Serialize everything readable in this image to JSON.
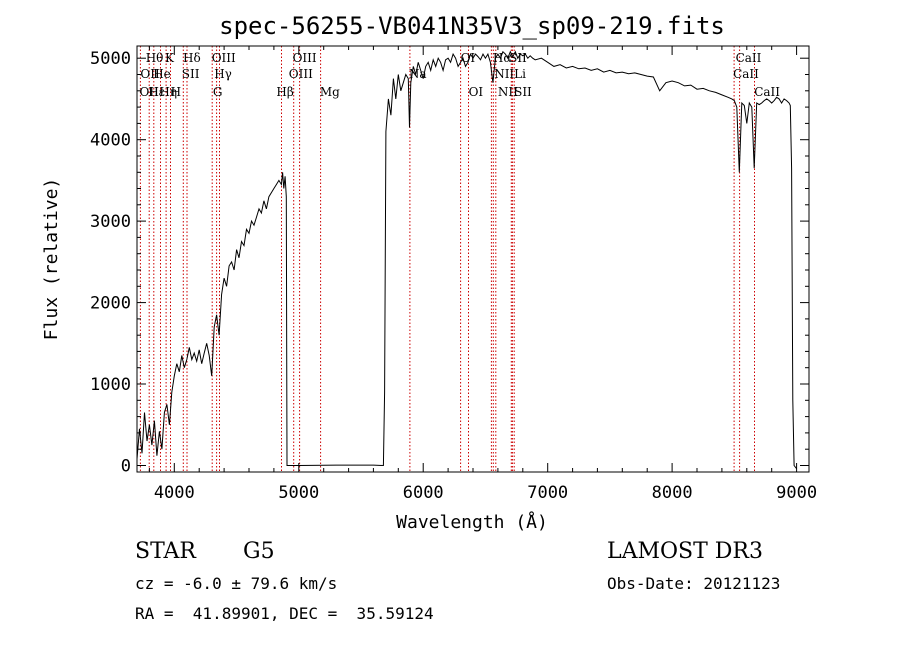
{
  "chart_data": {
    "type": "line",
    "title": "spec-56255-VB041N35V3_sp09-219.fits",
    "xlabel": "Wavelength (Å)",
    "ylabel": "Flux (relative)",
    "xlim": [
      3700,
      9100
    ],
    "ylim": [
      -80,
      5150
    ],
    "x_ticks": [
      4000,
      5000,
      6000,
      7000,
      8000,
      9000
    ],
    "y_ticks": [
      0,
      1000,
      2000,
      3000,
      4000,
      5000
    ],
    "grid": false,
    "series": [
      {
        "color": "#000000",
        "points": [
          [
            3700,
            80
          ],
          [
            3720,
            450
          ],
          [
            3740,
            150
          ],
          [
            3760,
            650
          ],
          [
            3780,
            300
          ],
          [
            3800,
            500
          ],
          [
            3820,
            250
          ],
          [
            3840,
            550
          ],
          [
            3860,
            120
          ],
          [
            3880,
            420
          ],
          [
            3900,
            200
          ],
          [
            3920,
            650
          ],
          [
            3940,
            750
          ],
          [
            3960,
            500
          ],
          [
            3980,
            900
          ],
          [
            4000,
            1100
          ],
          [
            4020,
            1250
          ],
          [
            4040,
            1150
          ],
          [
            4060,
            1350
          ],
          [
            4080,
            1200
          ],
          [
            4100,
            1300
          ],
          [
            4120,
            1450
          ],
          [
            4140,
            1300
          ],
          [
            4160,
            1380
          ],
          [
            4180,
            1280
          ],
          [
            4200,
            1420
          ],
          [
            4220,
            1250
          ],
          [
            4240,
            1380
          ],
          [
            4260,
            1500
          ],
          [
            4280,
            1350
          ],
          [
            4300,
            1100
          ],
          [
            4320,
            1700
          ],
          [
            4340,
            1850
          ],
          [
            4360,
            1600
          ],
          [
            4380,
            2100
          ],
          [
            4400,
            2300
          ],
          [
            4420,
            2200
          ],
          [
            4440,
            2450
          ],
          [
            4460,
            2500
          ],
          [
            4480,
            2400
          ],
          [
            4500,
            2650
          ],
          [
            4520,
            2550
          ],
          [
            4540,
            2750
          ],
          [
            4560,
            2700
          ],
          [
            4580,
            2900
          ],
          [
            4600,
            2850
          ],
          [
            4620,
            3000
          ],
          [
            4640,
            2950
          ],
          [
            4660,
            3050
          ],
          [
            4680,
            3150
          ],
          [
            4700,
            3100
          ],
          [
            4720,
            3250
          ],
          [
            4740,
            3150
          ],
          [
            4760,
            3300
          ],
          [
            4780,
            3350
          ],
          [
            4800,
            3400
          ],
          [
            4820,
            3450
          ],
          [
            4840,
            3500
          ],
          [
            4860,
            3450
          ],
          [
            4870,
            3600
          ],
          [
            4880,
            3400
          ],
          [
            4890,
            3550
          ],
          [
            4900,
            3300
          ],
          [
            4905,
            0
          ],
          [
            5000,
            0
          ],
          [
            5300,
            5
          ],
          [
            5600,
            5
          ],
          [
            5680,
            0
          ],
          [
            5690,
            900
          ],
          [
            5700,
            4100
          ],
          [
            5720,
            4500
          ],
          [
            5740,
            4300
          ],
          [
            5760,
            4750
          ],
          [
            5780,
            4500
          ],
          [
            5800,
            4800
          ],
          [
            5820,
            4600
          ],
          [
            5840,
            4700
          ],
          [
            5860,
            4800
          ],
          [
            5880,
            4750
          ],
          [
            5890,
            4150
          ],
          [
            5900,
            4700
          ],
          [
            5920,
            4900
          ],
          [
            5940,
            4800
          ],
          [
            5960,
            4950
          ],
          [
            5980,
            4850
          ],
          [
            6000,
            4750
          ],
          [
            6020,
            4900
          ],
          [
            6040,
            4950
          ],
          [
            6060,
            4850
          ],
          [
            6080,
            4980
          ],
          [
            6100,
            4900
          ],
          [
            6120,
            5000
          ],
          [
            6140,
            4950
          ],
          [
            6160,
            4850
          ],
          [
            6180,
            4980
          ],
          [
            6200,
            5000
          ],
          [
            6220,
            4950
          ],
          [
            6240,
            5050
          ],
          [
            6260,
            5000
          ],
          [
            6280,
            4900
          ],
          [
            6300,
            4950
          ],
          [
            6320,
            5000
          ],
          [
            6340,
            4900
          ],
          [
            6360,
            4950
          ],
          [
            6380,
            5050
          ],
          [
            6400,
            5000
          ],
          [
            6420,
            5050
          ],
          [
            6440,
            5020
          ],
          [
            6460,
            4980
          ],
          [
            6480,
            5050
          ],
          [
            6500,
            5000
          ],
          [
            6520,
            5050
          ],
          [
            6540,
            4950
          ],
          [
            6560,
            4700
          ],
          [
            6580,
            5000
          ],
          [
            6600,
            5050
          ],
          [
            6620,
            5000
          ],
          [
            6640,
            5080
          ],
          [
            6660,
            5050
          ],
          [
            6680,
            5000
          ],
          [
            6700,
            5080
          ],
          [
            6720,
            5020
          ],
          [
            6740,
            5080
          ],
          [
            6760,
            5000
          ],
          [
            6780,
            5050
          ],
          [
            6800,
            5030
          ],
          [
            6820,
            5050
          ],
          [
            6840,
            5000
          ],
          [
            6860,
            5030
          ],
          [
            6880,
            5000
          ],
          [
            6900,
            4980
          ],
          [
            6950,
            5000
          ],
          [
            7000,
            4950
          ],
          [
            7050,
            4900
          ],
          [
            7100,
            4920
          ],
          [
            7150,
            4880
          ],
          [
            7200,
            4900
          ],
          [
            7250,
            4870
          ],
          [
            7300,
            4880
          ],
          [
            7350,
            4850
          ],
          [
            7400,
            4870
          ],
          [
            7450,
            4830
          ],
          [
            7500,
            4850
          ],
          [
            7550,
            4820
          ],
          [
            7600,
            4830
          ],
          [
            7650,
            4810
          ],
          [
            7700,
            4820
          ],
          [
            7750,
            4800
          ],
          [
            7800,
            4780
          ],
          [
            7850,
            4770
          ],
          [
            7900,
            4600
          ],
          [
            7950,
            4700
          ],
          [
            8000,
            4720
          ],
          [
            8050,
            4700
          ],
          [
            8100,
            4660
          ],
          [
            8150,
            4670
          ],
          [
            8200,
            4620
          ],
          [
            8250,
            4630
          ],
          [
            8300,
            4600
          ],
          [
            8350,
            4580
          ],
          [
            8400,
            4550
          ],
          [
            8450,
            4520
          ],
          [
            8480,
            4500
          ],
          [
            8500,
            4480
          ],
          [
            8520,
            4400
          ],
          [
            8540,
            3600
          ],
          [
            8560,
            4450
          ],
          [
            8580,
            4420
          ],
          [
            8600,
            4200
          ],
          [
            8620,
            4450
          ],
          [
            8640,
            4400
          ],
          [
            8660,
            3650
          ],
          [
            8680,
            4450
          ],
          [
            8700,
            4430
          ],
          [
            8720,
            4450
          ],
          [
            8740,
            4480
          ],
          [
            8760,
            4500
          ],
          [
            8780,
            4480
          ],
          [
            8800,
            4450
          ],
          [
            8820,
            4480
          ],
          [
            8840,
            4520
          ],
          [
            8860,
            4500
          ],
          [
            8880,
            4450
          ],
          [
            8900,
            4500
          ],
          [
            8920,
            4480
          ],
          [
            8940,
            4450
          ],
          [
            8950,
            4420
          ],
          [
            8960,
            3650
          ],
          [
            8970,
            800
          ],
          [
            8980,
            0
          ],
          [
            9000,
            -40
          ]
        ]
      }
    ],
    "line_color": "#cc0000",
    "line_markers": [
      3727,
      3798,
      3835,
      3889,
      3934,
      3969,
      4072,
      4102,
      4304,
      4340,
      4363,
      4861,
      4959,
      5007,
      5175,
      5893,
      6300,
      6364,
      6548,
      6563,
      6583,
      6708,
      6717,
      6731,
      8498,
      8542,
      8662
    ],
    "line_labels": [
      {
        "text": "Hθ",
        "x": 3770,
        "row": 1
      },
      {
        "text": "K",
        "x": 3925,
        "row": 1
      },
      {
        "text": "Hδ",
        "x": 4070,
        "row": 1
      },
      {
        "text": "OIII",
        "x": 4300,
        "row": 1
      },
      {
        "text": "OIII",
        "x": 4950,
        "row": 1
      },
      {
        "text": "OI",
        "x": 6300,
        "row": 1
      },
      {
        "text": "Hα",
        "x": 6560,
        "row": 1
      },
      {
        "text": "SII",
        "x": 6690,
        "row": 1
      },
      {
        "text": "CaII",
        "x": 8510,
        "row": 1
      },
      {
        "text": "OII",
        "x": 3727,
        "row": 2
      },
      {
        "text": "He",
        "x": 3830,
        "row": 2
      },
      {
        "text": "SII",
        "x": 4060,
        "row": 2
      },
      {
        "text": "Hγ",
        "x": 4320,
        "row": 2
      },
      {
        "text": "OIII",
        "x": 4920,
        "row": 2
      },
      {
        "text": "Na",
        "x": 5885,
        "row": 2
      },
      {
        "text": "NII",
        "x": 6570,
        "row": 2
      },
      {
        "text": "Li",
        "x": 6730,
        "row": 2
      },
      {
        "text": "CaII",
        "x": 8490,
        "row": 2
      },
      {
        "text": "OII",
        "x": 3720,
        "row": 3
      },
      {
        "text": "Hε",
        "x": 3790,
        "row": 3
      },
      {
        "text": "Hη",
        "x": 3880,
        "row": 3
      },
      {
        "text": "H",
        "x": 3970,
        "row": 3
      },
      {
        "text": "G",
        "x": 4310,
        "row": 3
      },
      {
        "text": "Hβ",
        "x": 4820,
        "row": 3
      },
      {
        "text": "Mg",
        "x": 5170,
        "row": 3
      },
      {
        "text": "OI",
        "x": 6365,
        "row": 3
      },
      {
        "text": "NII",
        "x": 6600,
        "row": 3
      },
      {
        "text": "SII",
        "x": 6730,
        "row": 3
      },
      {
        "text": "CaII",
        "x": 8660,
        "row": 3
      }
    ]
  },
  "info": {
    "object_type": "STAR",
    "subclass": "G5",
    "survey": "LAMOST DR3",
    "cz": "cz = -6.0 ± 79.6 km/s",
    "obs_date": "Obs-Date: 20121123",
    "coords": "RA =  41.89901, DEC =  35.59124"
  }
}
